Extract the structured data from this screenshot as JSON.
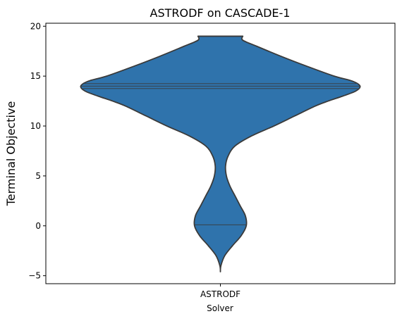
{
  "chart_data": {
    "type": "violin",
    "title": "ASTRODF on CASCADE-1",
    "xlabel": "Solver",
    "ylabel": "Terminal Objective",
    "categories": [
      "ASTRODF"
    ],
    "ylim": [
      -5.8,
      20.3
    ],
    "yticks": [
      -5,
      0,
      5,
      10,
      15,
      20
    ],
    "fill_color": "#2f73ac",
    "edge_color": "#3a3a3a",
    "violin": {
      "y_min": -4.6,
      "y_max": 19.0,
      "profile": [
        [
          -4.6,
          0.0
        ],
        [
          -4.0,
          0.006
        ],
        [
          -3.0,
          0.05
        ],
        [
          -2.0,
          0.14
        ],
        [
          -1.0,
          0.24
        ],
        [
          0.0,
          0.3
        ],
        [
          1.0,
          0.29
        ],
        [
          2.0,
          0.23
        ],
        [
          3.0,
          0.17
        ],
        [
          4.0,
          0.11
        ],
        [
          5.0,
          0.07
        ],
        [
          6.0,
          0.06
        ],
        [
          7.0,
          0.09
        ],
        [
          8.0,
          0.17
        ],
        [
          9.0,
          0.36
        ],
        [
          10.0,
          0.62
        ],
        [
          11.0,
          0.86
        ],
        [
          12.0,
          1.1
        ],
        [
          12.5,
          1.25
        ],
        [
          13.0,
          1.42
        ],
        [
          13.5,
          1.57
        ],
        [
          14.0,
          1.62
        ],
        [
          14.5,
          1.53
        ],
        [
          15.0,
          1.32
        ],
        [
          16.0,
          1.0
        ],
        [
          17.0,
          0.7
        ],
        [
          18.0,
          0.42
        ],
        [
          18.6,
          0.26
        ],
        [
          19.0,
          0.26
        ]
      ]
    },
    "inner_lines": [
      0.1,
      13.75,
      14.0,
      14.25
    ]
  }
}
